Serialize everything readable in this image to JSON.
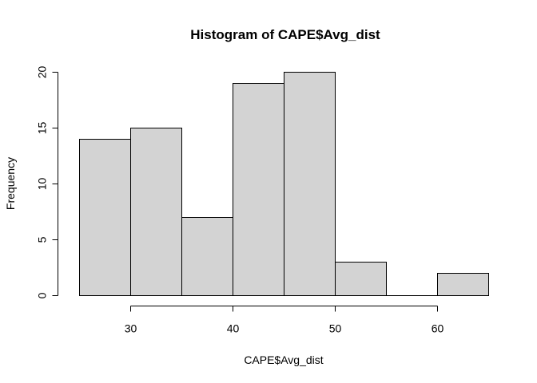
{
  "chart_data": {
    "type": "bar",
    "title": "Histogram of CAPE$Avg_dist",
    "xlabel": "CAPE$Avg_dist",
    "ylabel": "Frequency",
    "bins": [
      {
        "from": 25,
        "to": 30,
        "count": 14
      },
      {
        "from": 30,
        "to": 35,
        "count": 15
      },
      {
        "from": 35,
        "to": 40,
        "count": 7
      },
      {
        "from": 40,
        "to": 45,
        "count": 19
      },
      {
        "from": 45,
        "to": 50,
        "count": 20
      },
      {
        "from": 50,
        "to": 55,
        "count": 3
      },
      {
        "from": 55,
        "to": 60,
        "count": 0
      },
      {
        "from": 60,
        "to": 65,
        "count": 2
      }
    ],
    "x_ticks": [
      "30",
      "40",
      "50",
      "60"
    ],
    "y_ticks": [
      "0",
      "5",
      "10",
      "15",
      "20"
    ],
    "xlim": [
      25,
      65
    ],
    "ylim": [
      0,
      20
    ],
    "bar_color": "#d3d3d3",
    "border_color": "#000000",
    "grid": false
  }
}
